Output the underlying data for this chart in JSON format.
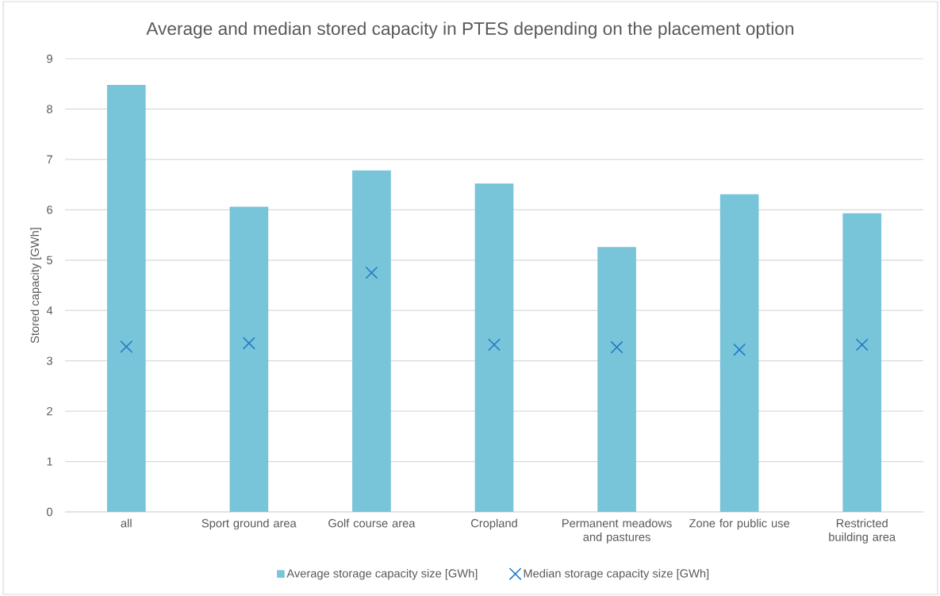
{
  "chart_data": {
    "type": "bar",
    "title": "Average and median stored capacity in PTES depending on the placement option",
    "ylabel": "Stored capacity [GWh]",
    "categories": [
      "all",
      "Sport ground area",
      "Golf course area",
      "Cropland",
      "Permanent meadows and pastures",
      "Zone for public use",
      "Restricted building area"
    ],
    "series": [
      {
        "name": "Average storage capacity size [GWh]",
        "color": "#78c4d9",
        "values": [
          8.48,
          6.06,
          6.78,
          6.52,
          5.26,
          6.31,
          5.93
        ]
      },
      {
        "name": "Median storage capacity size [GWh]",
        "type": "scatter",
        "color": "#1f77c4",
        "marker": "cross",
        "x": [
          "all",
          "Sport ground area",
          "Golf course area",
          "Cropland",
          "Permanent meadows and pastures",
          "Zone for public use",
          "Restricted building area"
        ],
        "values": [
          3.28,
          3.35,
          4.75,
          3.32,
          3.27,
          3.22,
          3.32
        ]
      }
    ],
    "ylim": [
      0,
      9
    ],
    "yticks": [
      0,
      1,
      2,
      3,
      4,
      5,
      6,
      7,
      8,
      9
    ],
    "grid": "y",
    "legend": "bottom"
  }
}
